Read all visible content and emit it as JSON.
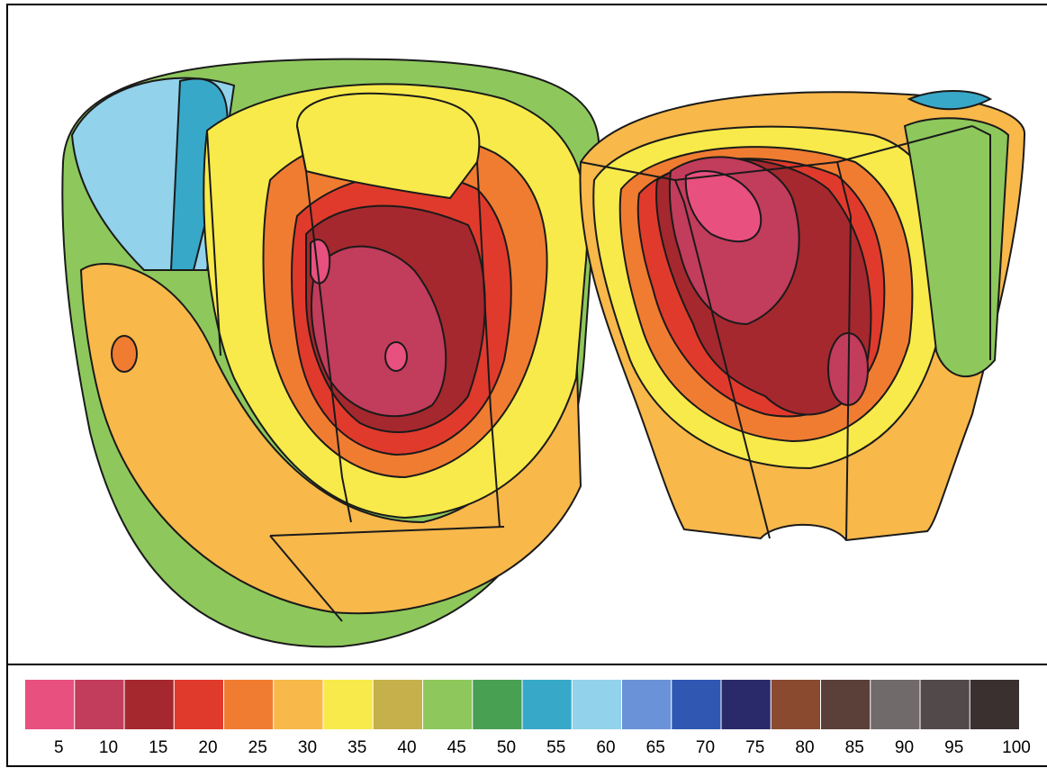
{
  "legend": {
    "ticks": [
      5,
      10,
      15,
      20,
      25,
      30,
      35,
      40,
      45,
      50,
      55,
      60,
      65,
      70,
      75,
      80,
      85,
      90,
      95,
      100
    ],
    "colors": [
      "#e8507f",
      "#c23c5c",
      "#a5282e",
      "#e03a2c",
      "#f07c32",
      "#f8b84a",
      "#f8ea4a",
      "#c6b04c",
      "#8ec85c",
      "#48a052",
      "#38a8c8",
      "#92d2ea",
      "#6a92d8",
      "#3058b2",
      "#2a2a6a",
      "#8a4a30",
      "#5a4038",
      "#716a6a",
      "#524a4a",
      "#3a3030"
    ]
  }
}
